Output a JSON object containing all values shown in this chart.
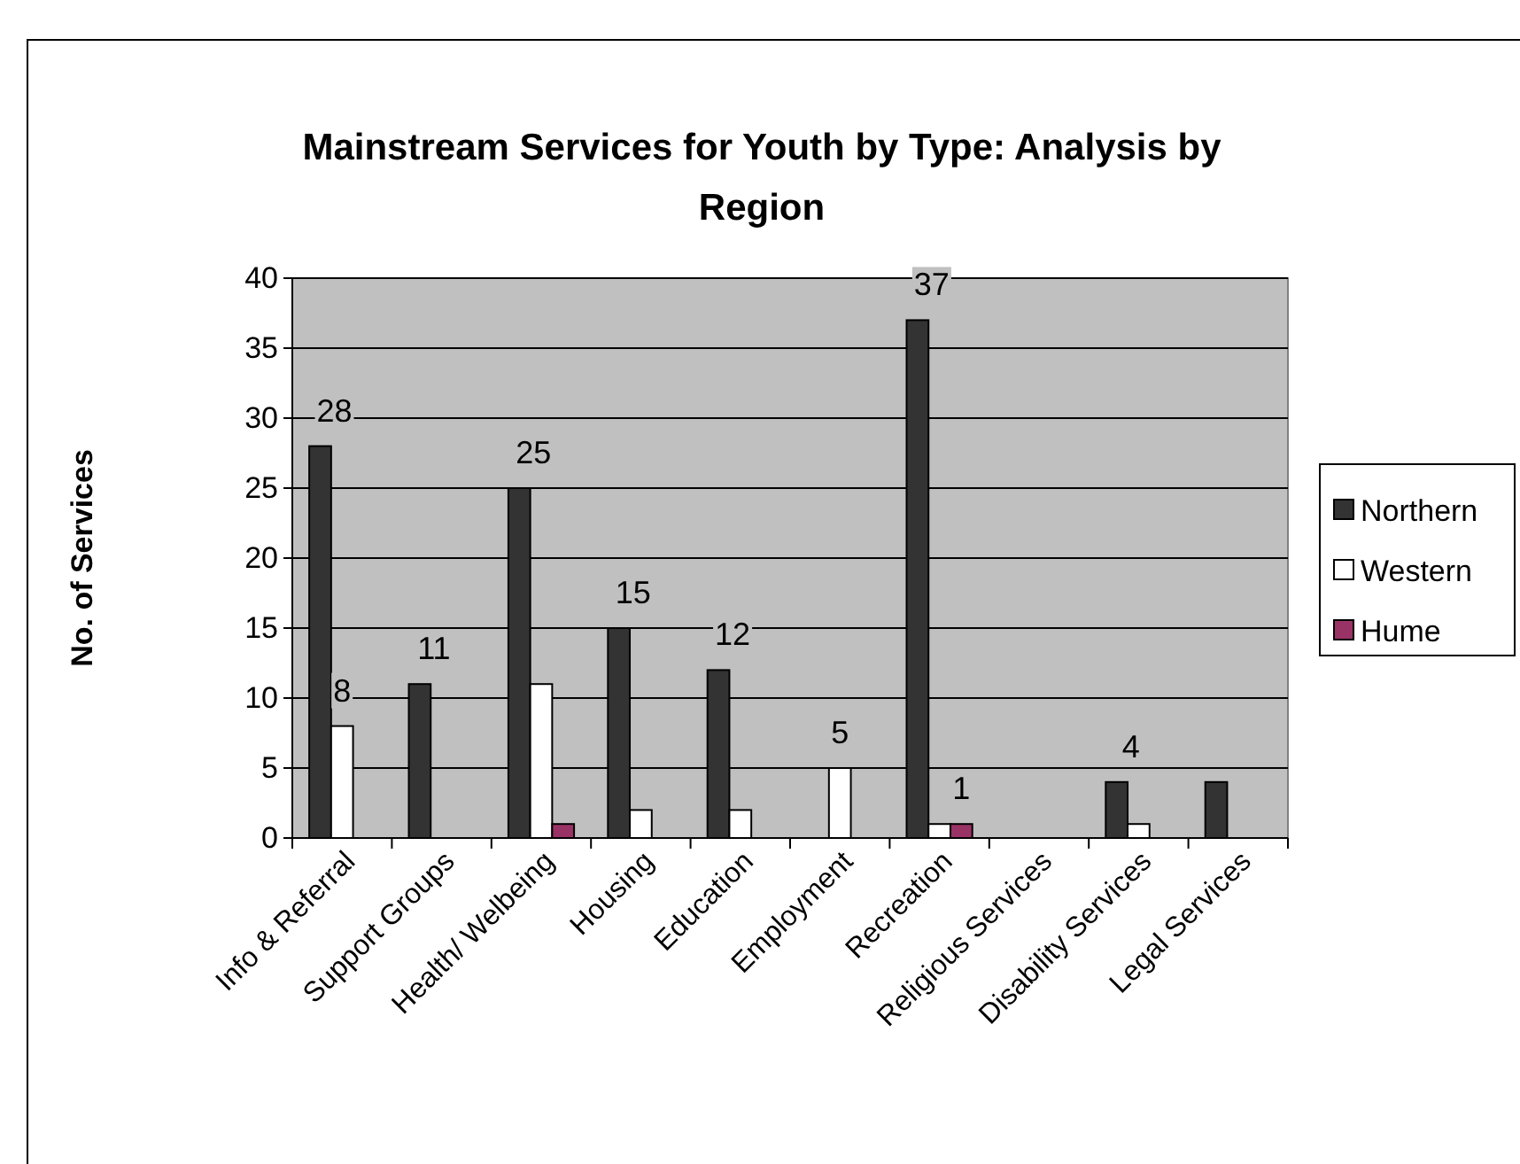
{
  "chart_data": {
    "type": "bar",
    "title": "Mainstream Services for Youth by Type: Analysis by Region",
    "ylabel": "No. of Services",
    "categories": [
      "Info & Referral",
      "Support Groups",
      "Health/ Welbeing",
      "Housing",
      "Education",
      "Employment",
      "Recreation",
      "Religious Services",
      "Disability Services",
      "Legal Services"
    ],
    "series": [
      {
        "name": "Northern",
        "color": "#333333",
        "values": [
          28,
          11,
          25,
          15,
          12,
          null,
          37,
          null,
          4,
          4
        ],
        "value_labels": [
          "28",
          "11",
          "25",
          "15",
          "12",
          null,
          "37",
          null,
          "4",
          null
        ]
      },
      {
        "name": "Western",
        "color": "#ffffff",
        "values": [
          8,
          null,
          11,
          2,
          2,
          5,
          1,
          null,
          1,
          null
        ],
        "value_labels": [
          "8",
          null,
          null,
          null,
          null,
          "5",
          null,
          null,
          null,
          null
        ]
      },
      {
        "name": "Hume",
        "color": "#993366",
        "values": [
          null,
          null,
          1,
          null,
          null,
          null,
          1,
          null,
          null,
          null
        ],
        "value_labels": [
          null,
          null,
          null,
          null,
          null,
          null,
          "1",
          null,
          null,
          null
        ]
      }
    ],
    "ylim": [
      0,
      40
    ],
    "yticks": [
      0,
      5,
      10,
      15,
      20,
      25,
      30,
      35,
      40
    ],
    "grid": "y",
    "legend": "right"
  }
}
